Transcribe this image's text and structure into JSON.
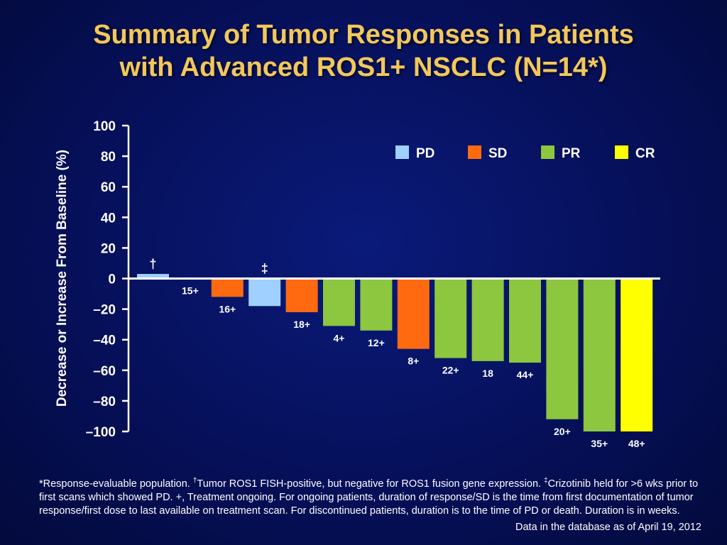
{
  "title_line1": "Summary of Tumor Responses in Patients",
  "title_line2": "with Advanced ROS1+ NSCLC (N=14*)",
  "footnote": {
    "part1": "*Response-evaluable population. ",
    "dagger": "†",
    "part2": "Tumor ROS1 FISH-positive, but negative for ROS1 fusion gene expression. ",
    "ddagger": "‡",
    "part3": "Crizotinib held for >6 wks prior to first scans which showed PD. +, Treatment ongoing. For ongoing patients, duration of response/SD is the time from first documentation of tumor response/first dose to last available on treatment scan. For discontinued patients, duration is to the time of PD or death. Duration is in weeks."
  },
  "data_note": "Data in the database as of April 19, 2012",
  "colors": {
    "PD": "#9fd0ff",
    "SD": "#ff6a10",
    "PR": "#8dc63f",
    "CR": "#ffff00",
    "title": "#f2c75c"
  },
  "chart_data": {
    "type": "bar",
    "ylabel": "Decrease or Increase From Baseline (%)",
    "ylim": [
      -100,
      100
    ],
    "yticks": [
      "100",
      "80",
      "60",
      "40",
      "20",
      "0",
      "–20",
      "–40",
      "–60",
      "–80",
      "–100"
    ],
    "legend": [
      "PD",
      "SD",
      "PR",
      "CR"
    ],
    "legend_position": "top-right",
    "bars": [
      {
        "value": 3,
        "response": "PD",
        "label": "",
        "marker": "†"
      },
      {
        "value": 0,
        "response": "SD",
        "label": "15+",
        "marker": ""
      },
      {
        "value": -12,
        "response": "SD",
        "label": "16+",
        "marker": ""
      },
      {
        "value": -18,
        "response": "PD",
        "label": "",
        "marker": "‡"
      },
      {
        "value": -22,
        "response": "SD",
        "label": "18+",
        "marker": ""
      },
      {
        "value": -31,
        "response": "PR",
        "label": "4+",
        "marker": ""
      },
      {
        "value": -34,
        "response": "PR",
        "label": "12+",
        "marker": ""
      },
      {
        "value": -46,
        "response": "SD",
        "label": "8+",
        "marker": ""
      },
      {
        "value": -52,
        "response": "PR",
        "label": "22+",
        "marker": ""
      },
      {
        "value": -54,
        "response": "PR",
        "label": "18",
        "marker": ""
      },
      {
        "value": -55,
        "response": "PR",
        "label": "44+",
        "marker": ""
      },
      {
        "value": -92,
        "response": "PR",
        "label": "20+",
        "marker": ""
      },
      {
        "value": -100,
        "response": "PR",
        "label": "35+",
        "marker": ""
      },
      {
        "value": -100,
        "response": "CR",
        "label": "48+",
        "marker": ""
      }
    ]
  }
}
